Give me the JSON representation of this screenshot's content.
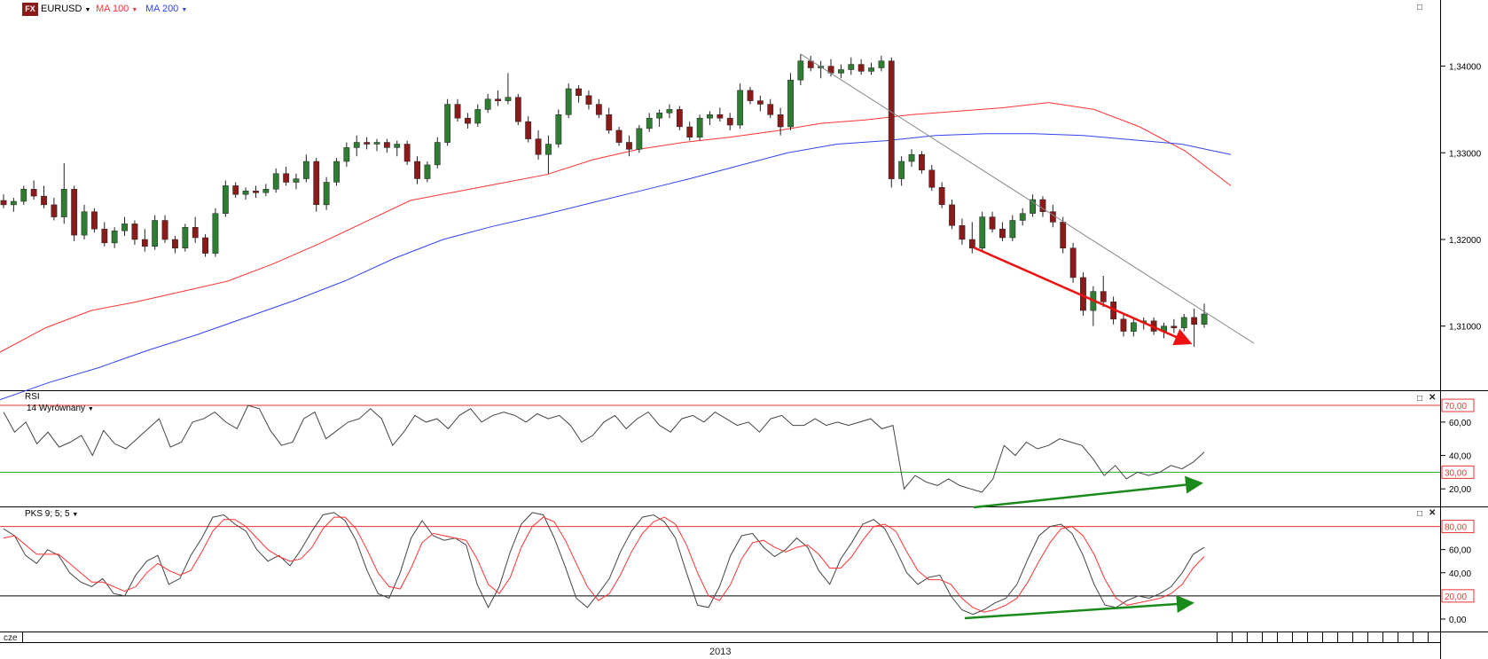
{
  "header": {
    "logo_text": "FX",
    "symbol": "EURUSD",
    "ma100_label": "MA 100",
    "ma200_label": "MA 200",
    "dropdown_icon": "caret-down-icon",
    "maximize_icon": "window-maximize-icon",
    "close_icon": "close-icon"
  },
  "rsi_panel": {
    "title": "RSI",
    "subtitle": "14 Wyrównany",
    "levels": [
      "70,00",
      "30,00"
    ],
    "ticks": [
      "60,00",
      "40,00",
      "20,00"
    ]
  },
  "pks_panel": {
    "title": "PKS 9; 5; 5",
    "levels": [
      "80,00",
      "20,00"
    ],
    "ticks": [
      "60,00",
      "40,00",
      "0,00"
    ]
  },
  "time_axis": {
    "left_label": "cze",
    "year_label": "2013"
  },
  "colors": {
    "up_candle": "#2e7d32",
    "down_candle": "#8b1a1a",
    "ma100": "#ff3333",
    "ma200": "#3344ee",
    "trendline": "#888888",
    "bearish_arrow": "#ee1111",
    "bullish_arrow": "#1a8a1a",
    "level_red": "#ee3333",
    "level_green": "#22aa22"
  },
  "chart_data": [
    {
      "type": "candlestick",
      "title": "EURUSD",
      "yticks": [
        "1,34000",
        "1,33000",
        "1,32000",
        "1,31000"
      ],
      "ylim": [
        1.3028,
        1.3462
      ],
      "overlays": [
        {
          "name": "MA 100",
          "values": [
            1.307,
            1.3098,
            1.3118,
            1.3128,
            1.314,
            1.3152,
            1.3172,
            1.3195,
            1.322,
            1.3245,
            1.3255,
            1.3265,
            1.3275,
            1.3292,
            1.3304,
            1.3312,
            1.3318,
            1.3325,
            1.3334,
            1.3338,
            1.3344,
            1.3348,
            1.3352,
            1.3358,
            1.335,
            1.333,
            1.3302,
            1.3262
          ]
        },
        {
          "name": "MA 200",
          "values": [
            1.3015,
            1.3035,
            1.3052,
            1.3072,
            1.309,
            1.311,
            1.313,
            1.3152,
            1.3178,
            1.32,
            1.3215,
            1.3228,
            1.3242,
            1.3256,
            1.327,
            1.3285,
            1.33,
            1.331,
            1.3314,
            1.332,
            1.3322,
            1.3322,
            1.332,
            1.3315,
            1.331,
            1.3298
          ]
        }
      ],
      "ohlc": [
        [
          1.3245,
          1.3252,
          1.3236,
          1.324
        ],
        [
          1.324,
          1.3248,
          1.3232,
          1.3244
        ],
        [
          1.3244,
          1.3262,
          1.324,
          1.3258
        ],
        [
          1.3258,
          1.3268,
          1.3246,
          1.325
        ],
        [
          1.325,
          1.3262,
          1.3236,
          1.324
        ],
        [
          1.324,
          1.3248,
          1.3222,
          1.3226
        ],
        [
          1.3226,
          1.3288,
          1.3218,
          1.3258
        ],
        [
          1.3258,
          1.3262,
          1.3198,
          1.3205
        ],
        [
          1.3205,
          1.324,
          1.32,
          1.3232
        ],
        [
          1.3232,
          1.3236,
          1.3208,
          1.3212
        ],
        [
          1.3212,
          1.322,
          1.3192,
          1.3196
        ],
        [
          1.3196,
          1.3214,
          1.319,
          1.321
        ],
        [
          1.321,
          1.3226,
          1.3204,
          1.3218
        ],
        [
          1.3218,
          1.3222,
          1.3194,
          1.32
        ],
        [
          1.32,
          1.3212,
          1.3186,
          1.3192
        ],
        [
          1.3192,
          1.3228,
          1.3188,
          1.3222
        ],
        [
          1.3222,
          1.3228,
          1.3196,
          1.32
        ],
        [
          1.32,
          1.3204,
          1.3184,
          1.319
        ],
        [
          1.319,
          1.3218,
          1.3186,
          1.3214
        ],
        [
          1.3214,
          1.3226,
          1.3196,
          1.3202
        ],
        [
          1.3202,
          1.3206,
          1.318,
          1.3184
        ],
        [
          1.3184,
          1.3236,
          1.318,
          1.323
        ],
        [
          1.323,
          1.3268,
          1.3226,
          1.3262
        ],
        [
          1.3262,
          1.3266,
          1.3248,
          1.3252
        ],
        [
          1.3252,
          1.326,
          1.3246,
          1.3256
        ],
        [
          1.3256,
          1.3262,
          1.3248,
          1.3254
        ],
        [
          1.3254,
          1.3264,
          1.325,
          1.3258
        ],
        [
          1.3258,
          1.3282,
          1.3254,
          1.3276
        ],
        [
          1.3276,
          1.3284,
          1.3262,
          1.3266
        ],
        [
          1.3266,
          1.3276,
          1.3258,
          1.327
        ],
        [
          1.327,
          1.3298,
          1.3266,
          1.329
        ],
        [
          1.329,
          1.3294,
          1.3232,
          1.324
        ],
        [
          1.324,
          1.3272,
          1.3234,
          1.3266
        ],
        [
          1.3266,
          1.3294,
          1.3262,
          1.329
        ],
        [
          1.329,
          1.3312,
          1.3284,
          1.3306
        ],
        [
          1.3306,
          1.332,
          1.3296,
          1.3312
        ],
        [
          1.3312,
          1.3318,
          1.3304,
          1.331
        ],
        [
          1.331,
          1.3316,
          1.3302,
          1.3312
        ],
        [
          1.3312,
          1.3316,
          1.33,
          1.3306
        ],
        [
          1.3306,
          1.3314,
          1.3296,
          1.331
        ],
        [
          1.331,
          1.3314,
          1.3286,
          1.329
        ],
        [
          1.329,
          1.3296,
          1.3264,
          1.327
        ],
        [
          1.327,
          1.329,
          1.3266,
          1.3286
        ],
        [
          1.3286,
          1.3318,
          1.3282,
          1.3312
        ],
        [
          1.3312,
          1.3362,
          1.3308,
          1.3356
        ],
        [
          1.3356,
          1.3362,
          1.3336,
          1.334
        ],
        [
          1.334,
          1.3346,
          1.3328,
          1.3334
        ],
        [
          1.3334,
          1.3356,
          1.333,
          1.335
        ],
        [
          1.335,
          1.3368,
          1.3346,
          1.3362
        ],
        [
          1.3362,
          1.3372,
          1.3354,
          1.336
        ],
        [
          1.336,
          1.3392,
          1.3356,
          1.3364
        ],
        [
          1.3364,
          1.3368,
          1.3332,
          1.3336
        ],
        [
          1.3336,
          1.3342,
          1.3312,
          1.3316
        ],
        [
          1.3316,
          1.3326,
          1.3292,
          1.3298
        ],
        [
          1.3298,
          1.332,
          1.3276,
          1.331
        ],
        [
          1.331,
          1.335,
          1.3306,
          1.3344
        ],
        [
          1.3344,
          1.338,
          1.334,
          1.3374
        ],
        [
          1.3374,
          1.3378,
          1.3358,
          1.3366
        ],
        [
          1.3366,
          1.3372,
          1.335,
          1.3356
        ],
        [
          1.3356,
          1.3362,
          1.334,
          1.3344
        ],
        [
          1.3344,
          1.3352,
          1.3322,
          1.3326
        ],
        [
          1.3326,
          1.333,
          1.3308,
          1.3312
        ],
        [
          1.3312,
          1.332,
          1.3296,
          1.3304
        ],
        [
          1.3304,
          1.3332,
          1.33,
          1.3328
        ],
        [
          1.3328,
          1.3346,
          1.3324,
          1.334
        ],
        [
          1.334,
          1.335,
          1.333,
          1.3346
        ],
        [
          1.3346,
          1.3356,
          1.334,
          1.335
        ],
        [
          1.335,
          1.3354,
          1.3326,
          1.333
        ],
        [
          1.333,
          1.3336,
          1.3314,
          1.3318
        ],
        [
          1.3318,
          1.3344,
          1.3314,
          1.334
        ],
        [
          1.334,
          1.3348,
          1.3332,
          1.3344
        ],
        [
          1.3344,
          1.3352,
          1.3336,
          1.334
        ],
        [
          1.334,
          1.3346,
          1.3326,
          1.3332
        ],
        [
          1.3332,
          1.338,
          1.3328,
          1.3372
        ],
        [
          1.3372,
          1.3376,
          1.3356,
          1.336
        ],
        [
          1.336,
          1.3366,
          1.3348,
          1.3356
        ],
        [
          1.3356,
          1.3362,
          1.334,
          1.3344
        ],
        [
          1.3344,
          1.3352,
          1.332,
          1.333
        ],
        [
          1.333,
          1.3392,
          1.3326,
          1.3384
        ],
        [
          1.3384,
          1.3414,
          1.3378,
          1.3406
        ],
        [
          1.3406,
          1.3412,
          1.3394,
          1.3398
        ],
        [
          1.3398,
          1.3406,
          1.3386,
          1.34
        ],
        [
          1.34,
          1.3408,
          1.3388,
          1.3392
        ],
        [
          1.3392,
          1.3402,
          1.3386,
          1.3396
        ],
        [
          1.3396,
          1.341,
          1.339,
          1.3402
        ],
        [
          1.3402,
          1.3408,
          1.339,
          1.3394
        ],
        [
          1.3394,
          1.3404,
          1.339,
          1.3398
        ],
        [
          1.3398,
          1.3412,
          1.3394,
          1.3406
        ],
        [
          1.3406,
          1.341,
          1.326,
          1.327
        ],
        [
          1.327,
          1.3296,
          1.3262,
          1.329
        ],
        [
          1.329,
          1.3304,
          1.3284,
          1.3298
        ],
        [
          1.3298,
          1.3302,
          1.3276,
          1.328
        ],
        [
          1.328,
          1.3286,
          1.3256,
          1.326
        ],
        [
          1.326,
          1.3266,
          1.3236,
          1.324
        ],
        [
          1.324,
          1.3246,
          1.3212,
          1.3216
        ],
        [
          1.3216,
          1.3224,
          1.3194,
          1.32
        ],
        [
          1.32,
          1.322,
          1.3184,
          1.319
        ],
        [
          1.319,
          1.3232,
          1.3186,
          1.3226
        ],
        [
          1.3226,
          1.3232,
          1.3208,
          1.3212
        ],
        [
          1.3212,
          1.322,
          1.3198,
          1.3202
        ],
        [
          1.3202,
          1.3228,
          1.3198,
          1.3222
        ],
        [
          1.3222,
          1.3236,
          1.3216,
          1.323
        ],
        [
          1.323,
          1.3252,
          1.3226,
          1.3246
        ],
        [
          1.3246,
          1.325,
          1.3226,
          1.3232
        ],
        [
          1.3232,
          1.324,
          1.3214,
          1.322
        ],
        [
          1.322,
          1.3226,
          1.3184,
          1.319
        ],
        [
          1.319,
          1.3196,
          1.315,
          1.3156
        ],
        [
          1.3156,
          1.3162,
          1.3112,
          1.3118
        ],
        [
          1.3118,
          1.3146,
          1.31,
          1.314
        ],
        [
          1.314,
          1.3158,
          1.3122,
          1.3128
        ],
        [
          1.3128,
          1.3134,
          1.3102,
          1.3108
        ],
        [
          1.3108,
          1.3114,
          1.3088,
          1.3094
        ],
        [
          1.3094,
          1.3108,
          1.3088,
          1.3104
        ],
        [
          1.3104,
          1.311,
          1.3096,
          1.3106
        ],
        [
          1.3106,
          1.311,
          1.309,
          1.3094
        ],
        [
          1.3094,
          1.3104,
          1.3086,
          1.31
        ],
        [
          1.31,
          1.3108,
          1.3092,
          1.3098
        ],
        [
          1.3098,
          1.3114,
          1.3094,
          1.311
        ],
        [
          1.311,
          1.312,
          1.3076,
          1.3102
        ],
        [
          1.3102,
          1.3126,
          1.3098,
          1.3114
        ]
      ]
    },
    {
      "type": "line",
      "title": "RSI",
      "ylim": [
        10,
        78
      ],
      "series": [
        {
          "name": "RSI",
          "values": [
            66,
            54,
            60,
            47,
            54,
            45,
            48,
            52,
            40,
            55,
            47,
            44,
            50,
            56,
            62,
            45,
            48,
            60,
            62,
            66,
            60,
            56,
            70,
            68,
            55,
            46,
            48,
            62,
            66,
            50,
            55,
            60,
            62,
            68,
            62,
            46,
            54,
            64,
            60,
            62,
            56,
            64,
            68,
            60,
            64,
            66,
            64,
            60,
            65,
            62,
            64,
            58,
            48,
            52,
            60,
            64,
            56,
            62,
            66,
            58,
            54,
            62,
            64,
            60,
            66,
            62,
            58,
            60,
            54,
            62,
            64,
            58,
            58,
            62,
            58,
            60,
            58,
            60,
            62,
            56,
            58,
            20,
            28,
            24,
            22,
            26,
            22,
            20,
            18,
            26,
            46,
            40,
            48,
            44,
            46,
            50,
            48,
            46,
            38,
            28,
            34,
            26,
            30,
            28,
            30,
            34,
            32,
            36,
            42
          ]
        }
      ]
    },
    {
      "type": "line",
      "title": "PKS 9; 5; 5",
      "ylim": [
        -10,
        95
      ],
      "series": [
        {
          "name": "%K",
          "values": [
            78,
            72,
            55,
            48,
            60,
            55,
            40,
            32,
            28,
            35,
            22,
            20,
            38,
            50,
            55,
            30,
            35,
            55,
            70,
            88,
            90,
            82,
            76,
            60,
            50,
            55,
            46,
            60,
            76,
            90,
            92,
            85,
            68,
            42,
            22,
            18,
            40,
            70,
            85,
            72,
            68,
            70,
            64,
            30,
            10,
            28,
            58,
            82,
            92,
            90,
            70,
            45,
            18,
            10,
            22,
            35,
            58,
            76,
            88,
            90,
            84,
            70,
            40,
            12,
            10,
            28,
            55,
            72,
            74,
            62,
            54,
            60,
            70,
            62,
            42,
            30,
            52,
            66,
            82,
            86,
            78,
            60,
            40,
            30,
            36,
            38,
            20,
            8,
            4,
            8,
            14,
            18,
            30,
            52,
            72,
            80,
            82,
            74,
            55,
            30,
            12,
            10,
            16,
            20,
            18,
            22,
            28,
            40,
            56,
            62
          ]
        },
        {
          "name": "%D",
          "values": [
            70,
            72,
            64,
            56,
            56,
            56,
            48,
            40,
            32,
            32,
            28,
            24,
            28,
            40,
            48,
            42,
            38,
            42,
            58,
            76,
            86,
            86,
            80,
            70,
            60,
            54,
            50,
            52,
            62,
            78,
            88,
            88,
            78,
            60,
            40,
            28,
            26,
            44,
            66,
            74,
            72,
            70,
            68,
            52,
            30,
            22,
            36,
            62,
            80,
            88,
            84,
            68,
            48,
            28,
            16,
            22,
            38,
            58,
            74,
            84,
            88,
            82,
            64,
            40,
            20,
            16,
            30,
            52,
            66,
            68,
            62,
            58,
            62,
            64,
            56,
            44,
            44,
            54,
            68,
            80,
            82,
            76,
            58,
            42,
            34,
            34,
            30,
            18,
            10,
            6,
            8,
            12,
            18,
            32,
            50,
            66,
            78,
            80,
            72,
            56,
            34,
            18,
            12,
            14,
            16,
            18,
            22,
            30,
            44,
            54
          ]
        }
      ]
    }
  ]
}
